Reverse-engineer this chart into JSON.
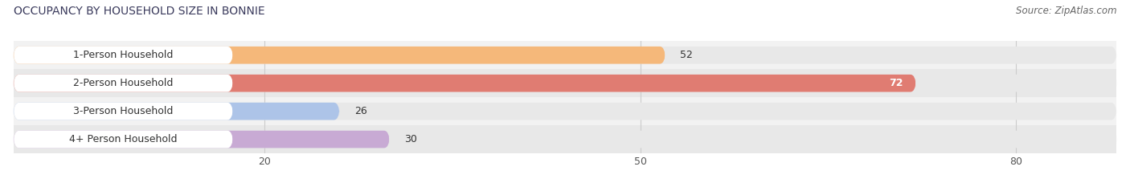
{
  "title": "OCCUPANCY BY HOUSEHOLD SIZE IN BONNIE",
  "source": "Source: ZipAtlas.com",
  "categories": [
    "1-Person Household",
    "2-Person Household",
    "3-Person Household",
    "4+ Person Household"
  ],
  "values": [
    52,
    72,
    26,
    30
  ],
  "bar_colors": [
    "#f5b87a",
    "#e07c72",
    "#adc4e8",
    "#c8aad4"
  ],
  "bar_bg_color": "#e8e8e8",
  "row_bg_colors": [
    "#f2f2f2",
    "#e8e8e8"
  ],
  "xlim": [
    0,
    88
  ],
  "xticks": [
    20,
    50,
    80
  ],
  "figsize": [
    14.06,
    2.33
  ],
  "dpi": 100,
  "title_fontsize": 10,
  "label_fontsize": 9,
  "value_fontsize": 9,
  "source_fontsize": 8.5,
  "bar_height": 0.62,
  "bg_color": "#ffffff",
  "title_color": "#3a3a5c",
  "label_color": "#333333",
  "value_color_dark": "#333333",
  "value_color_light": "#ffffff",
  "grid_color": "#cccccc",
  "source_color": "#666666"
}
